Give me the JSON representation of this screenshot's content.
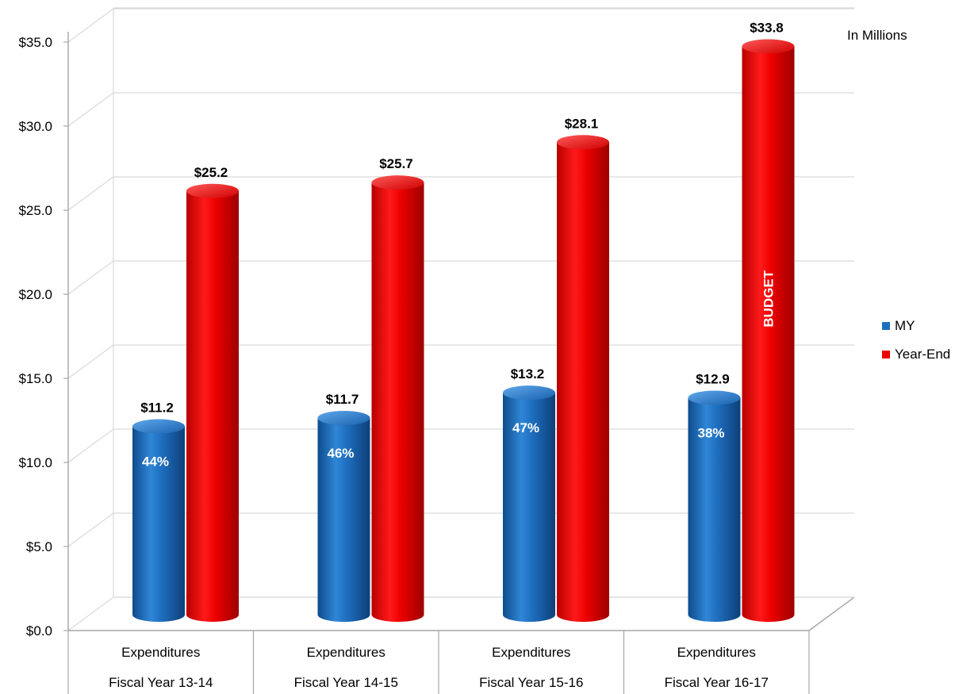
{
  "chart_data": {
    "type": "bar",
    "categories": [
      [
        "Expenditures",
        "Fiscal Year 13-14"
      ],
      [
        "Expenditures",
        "Fiscal Year 14-15"
      ],
      [
        "Expenditures",
        "Fiscal Year 15-16"
      ],
      [
        "Expenditures",
        "Fiscal Year 16-17"
      ]
    ],
    "series": [
      {
        "name": "MY",
        "values": [
          11.2,
          11.7,
          13.2,
          12.9
        ],
        "data_labels": [
          "$11.2",
          "$11.7",
          "$13.2",
          "$12.9"
        ],
        "inner_labels": [
          "44%",
          "46%",
          "47%",
          "38%"
        ],
        "color": "#1f6fc0"
      },
      {
        "name": "Year-End",
        "values": [
          25.2,
          25.7,
          28.1,
          33.8
        ],
        "data_labels": [
          "$25.2",
          "$25.7",
          "$28.1",
          "$33.8"
        ],
        "color": "#ee0000"
      }
    ],
    "inner_text": {
      "series": 1,
      "category": 3,
      "text": "BUDGET"
    },
    "units_note": "In Millions",
    "ylim": [
      0,
      35
    ],
    "yticks": [
      0,
      5,
      10,
      15,
      20,
      25,
      30,
      35
    ],
    "ytick_labels": [
      "$0.0",
      "$5.0",
      "$10.0",
      "$15.0",
      "$20.0",
      "$25.0",
      "$30.0",
      "$35.0"
    ],
    "grid": true,
    "legend_position": "right",
    "shape": "cylinder-3d"
  }
}
